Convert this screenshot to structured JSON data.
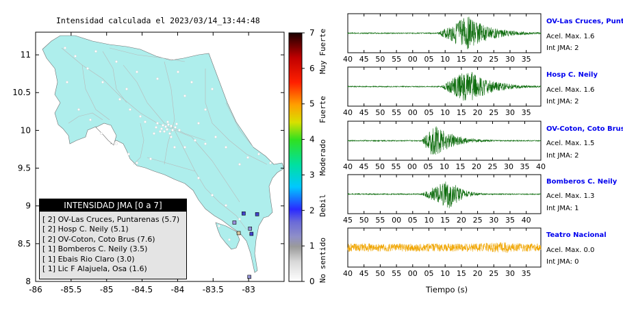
{
  "map": {
    "title": "Intensidad calculada el 2023/03/14_13:44:48",
    "x_ticks": [
      "-86",
      "-85.5",
      "-85",
      "-84.5",
      "-84",
      "-83.5",
      "-83"
    ],
    "y_ticks": [
      "11",
      "10.5",
      "10",
      "9.5",
      "9",
      "8.5",
      "8"
    ],
    "stations": [
      {
        "lon": -83.07,
        "lat": 8.9,
        "color": "#4444cc"
      },
      {
        "lon": -82.88,
        "lat": 8.89,
        "color": "#4444cc"
      },
      {
        "lon": -83.2,
        "lat": 8.78,
        "color": "#9a8fdc"
      },
      {
        "lon": -82.98,
        "lat": 8.7,
        "color": "#8f8fd6"
      },
      {
        "lon": -83.14,
        "lat": 8.64,
        "color": "#d8c7a0"
      },
      {
        "lon": -82.96,
        "lat": 8.63,
        "color": "#4444cc"
      },
      {
        "lon": -82.99,
        "lat": 8.06,
        "color": "#9090d0"
      }
    ]
  },
  "colorbar": {
    "ticks": [
      "0",
      "1",
      "2",
      "3",
      "4",
      "5",
      "6",
      "7"
    ],
    "categories": [
      "No sentido",
      "Debil",
      "Moderado",
      "Fuerte",
      "Muy Fuerte"
    ]
  },
  "legend": {
    "header": "INTENSIDAD JMA [0 a 7]",
    "items": [
      "[ 2]  OV-Las Cruces, Puntarenas (5.7)",
      "[ 2]  Hosp C. Neily (5.1)",
      "[ 2]  OV-Coton, Coto Brus (7.6)",
      "[ 1]  Bomberos C. Neily (3.5)",
      "[ 1]  Ebais Rio Claro (3.0)",
      "[ 1]  Lic F Alajuela, Osa (1.6)"
    ]
  },
  "traces": [
    {
      "name": "OV-Las Cruces, Puntar",
      "acel": "Acel. Max. 1.6",
      "jma": "Int JMA: 2",
      "ticks": [
        "40",
        "45",
        "50",
        "55",
        "00",
        "05",
        "10",
        "15",
        "20",
        "25",
        "30",
        "35"
      ],
      "color": "#0b6b0b"
    },
    {
      "name": "Hosp C. Neily",
      "acel": "Acel. Max. 1.6",
      "jma": "Int JMA: 2",
      "ticks": [
        "40",
        "45",
        "50",
        "55",
        "00",
        "05",
        "10",
        "15",
        "20",
        "25",
        "30",
        "35"
      ],
      "color": "#0b6b0b"
    },
    {
      "name": "OV-Coton, Coto Brus",
      "acel": "Acel. Max. 1.5",
      "jma": "Int JMA: 2",
      "ticks": [
        "40",
        "45",
        "50",
        "55",
        "00",
        "05",
        "10",
        "15",
        "20",
        "25",
        "30",
        "35",
        "40"
      ],
      "color": "#0b6b0b"
    },
    {
      "name": "Bomberos C. Neily",
      "acel": "Acel. Max. 1.3",
      "jma": "Int JMA: 1",
      "ticks": [
        "45",
        "50",
        "55",
        "00",
        "05",
        "10",
        "15",
        "20",
        "25",
        "30",
        "35",
        "40"
      ],
      "color": "#0b6b0b"
    },
    {
      "name": "Teatro Nacional",
      "acel": "Acel. Max. 0.0",
      "jma": "Int JMA: 0",
      "ticks": [
        "40",
        "45",
        "50",
        "55",
        "00",
        "05",
        "10",
        "15",
        "20",
        "25",
        "30",
        "35"
      ],
      "color": "#f0a500"
    }
  ],
  "xlabel": "Tiempo (s)"
}
